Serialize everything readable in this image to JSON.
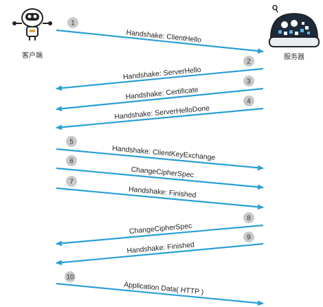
{
  "colors": {
    "arrow": "#2a9fd6",
    "step_circle": "#c8c8c8",
    "text": "#222222"
  },
  "actors": {
    "client": {
      "label": "客户端",
      "icon": "robot-icon"
    },
    "server": {
      "label": "服务器",
      "icon": "server-robot-icon"
    }
  },
  "messages": [
    {
      "step": "1",
      "label": "Handshake: ClientHello",
      "direction": "client-to-server"
    },
    {
      "step": "2",
      "label": "Handshake: ServerHello",
      "direction": "server-to-client"
    },
    {
      "step": "3",
      "label": "Handshake: Certificate",
      "direction": "server-to-client"
    },
    {
      "step": "4",
      "label": "Handshake: ServerHelloDone",
      "direction": "server-to-client"
    },
    {
      "step": "5",
      "label": "Handshake: ClientKeyExchange",
      "direction": "client-to-server"
    },
    {
      "step": "6",
      "label": "ChangeCipherSpec",
      "direction": "client-to-server"
    },
    {
      "step": "7",
      "label": "Handshake: Finished",
      "direction": "client-to-server"
    },
    {
      "step": "8",
      "label": "ChangeCipherSpec",
      "direction": "server-to-client"
    },
    {
      "step": "9",
      "label": "Handshake: Finished",
      "direction": "server-to-client"
    },
    {
      "step": "10",
      "label": "Application Data( HTTP )",
      "direction": "client-to-server"
    }
  ]
}
